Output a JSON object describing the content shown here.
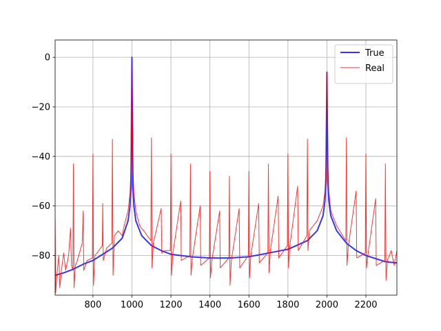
{
  "chart_data": {
    "type": "line",
    "xlim": [
      606,
      2359
    ],
    "ylim": [
      -96,
      7
    ],
    "xticks": [
      800,
      1000,
      1200,
      1400,
      1600,
      1800,
      2000,
      2200
    ],
    "yticks": [
      {
        "value": -80,
        "label": "−80"
      },
      {
        "value": -60,
        "label": "−60"
      },
      {
        "value": -40,
        "label": "−40"
      },
      {
        "value": -20,
        "label": "−20"
      },
      0
    ],
    "grid": true,
    "legend": "upper-right",
    "series": [
      {
        "name": "True",
        "color": "#0000ff",
        "x": [
          606,
          650,
          700,
          750,
          800,
          850,
          900,
          950,
          980,
          990,
          995,
          1000,
          1005,
          1010,
          1020,
          1050,
          1100,
          1150,
          1200,
          1300,
          1400,
          1500,
          1600,
          1700,
          1800,
          1900,
          1950,
          1980,
          1990,
          1995,
          2000,
          2005,
          2010,
          2020,
          2050,
          2100,
          2150,
          2200,
          2300,
          2359
        ],
        "values": [
          -88,
          -87,
          -85.5,
          -83.5,
          -82,
          -79.5,
          -77,
          -73,
          -66,
          -60,
          -52,
          0,
          -52,
          -60,
          -66,
          -72,
          -76,
          -78,
          -79.5,
          -80.5,
          -81,
          -81,
          -80.5,
          -79,
          -77.5,
          -74,
          -70,
          -64,
          -58,
          -50,
          -6,
          -50,
          -58,
          -64,
          -70,
          -75,
          -78,
          -80,
          -82.5,
          -83
        ]
      },
      {
        "name": "Real",
        "color": "#ff0000",
        "x": [
          606,
          609,
          615,
          625,
          630,
          640,
          650,
          660,
          675,
          685,
          690,
          697,
          700,
          703,
          710,
          720,
          745,
          750,
          753,
          770,
          797,
          800,
          803,
          810,
          830,
          848,
          850,
          853,
          870,
          897,
          900,
          903,
          910,
          930,
          950,
          960,
          980,
          990,
          995,
          1000,
          1005,
          1010,
          1020,
          1040,
          1060,
          1097,
          1100,
          1103,
          1110,
          1150,
          1153,
          1170,
          1197,
          1200,
          1203,
          1210,
          1250,
          1253,
          1297,
          1300,
          1303,
          1310,
          1350,
          1353,
          1397,
          1400,
          1403,
          1410,
          1450,
          1453,
          1497,
          1500,
          1503,
          1510,
          1550,
          1553,
          1597,
          1600,
          1603,
          1610,
          1650,
          1653,
          1697,
          1700,
          1703,
          1710,
          1750,
          1753,
          1797,
          1800,
          1803,
          1810,
          1850,
          1853,
          1897,
          1900,
          1903,
          1910,
          1950,
          1980,
          1990,
          1995,
          2000,
          2005,
          2010,
          2020,
          2050,
          2097,
          2100,
          2103,
          2110,
          2150,
          2153,
          2197,
          2200,
          2203,
          2210,
          2250,
          2253,
          2297,
          2300,
          2303,
          2310,
          2330,
          2345,
          2359
        ],
        "values": [
          -65,
          -95,
          -88,
          -80,
          -93,
          -85,
          -79,
          -86,
          -80,
          -69,
          -84,
          -86,
          -43,
          -93,
          -84,
          -82,
          -75,
          -62,
          -86,
          -82,
          -81,
          -39,
          -92,
          -80,
          -78,
          -76,
          -59,
          -82,
          -77,
          -75,
          -33,
          -88,
          -72,
          -70,
          -72,
          -68,
          -62,
          -55,
          -45,
          0,
          -45,
          -55,
          -62,
          -68,
          -70,
          -74,
          -32.5,
          -85,
          -75,
          -61,
          -79,
          -78,
          -78,
          -39,
          -88,
          -79,
          -58,
          -82,
          -80,
          -43,
          -88,
          -81,
          -60,
          -84,
          -81,
          -46,
          -89,
          -82,
          -62,
          -85,
          -81,
          -48,
          -92,
          -82,
          -61,
          -85,
          -80,
          -46,
          -89,
          -80,
          -59,
          -83,
          -79,
          -43,
          -87,
          -78,
          -56,
          -81,
          -76,
          -39,
          -85,
          -76,
          -52,
          -78,
          -72,
          -33,
          -78,
          -70,
          -66,
          -60,
          -54,
          -44,
          -6,
          -44,
          -54,
          -62,
          -68,
          -74,
          -32.5,
          -84,
          -76,
          -54,
          -81,
          -79,
          -39,
          -85,
          -80,
          -57,
          -84,
          -82,
          -43,
          -90,
          -82,
          -78,
          -84,
          -78
        ]
      }
    ]
  }
}
